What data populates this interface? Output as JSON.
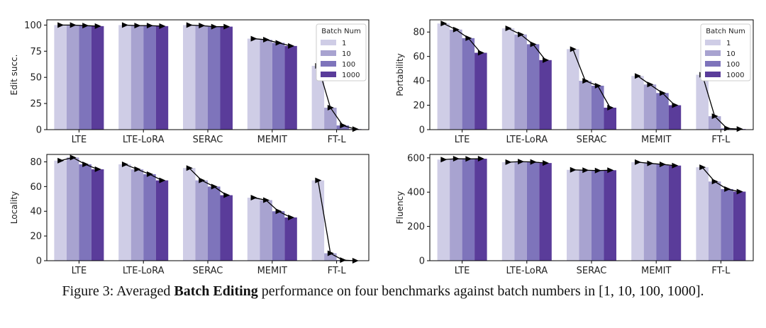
{
  "caption": {
    "prefix": "Figure 3: Averaged ",
    "bold": "Batch Editing",
    "suffix": " performance on four benchmarks against batch numbers in [1, 10, 100, 1000]."
  },
  "colors": {
    "series": [
      "#cfcde6",
      "#a8a3d0",
      "#7e74bb",
      "#5a3c9a"
    ],
    "line": "#000000",
    "axis": "#000000"
  },
  "chart_data": [
    {
      "type": "bar",
      "ylabel": "Edit succ.",
      "categories": [
        "LTE",
        "LTE-LoRA",
        "SERAC",
        "MEMIT",
        "FT-L"
      ],
      "ylim": [
        0,
        105
      ],
      "yticks": [
        0,
        25,
        50,
        75,
        100
      ],
      "legend": {
        "title": "Batch Num",
        "position": "top-right"
      },
      "series": [
        {
          "name": "1",
          "values": [
            100,
            100,
            100,
            87,
            61
          ]
        },
        {
          "name": "10",
          "values": [
            100,
            99.5,
            99.5,
            86,
            21
          ]
        },
        {
          "name": "100",
          "values": [
            99.5,
            99.5,
            98.5,
            83,
            4
          ]
        },
        {
          "name": "1000",
          "values": [
            99,
            99,
            98.5,
            80,
            0.5
          ]
        }
      ]
    },
    {
      "type": "bar",
      "ylabel": "Portability",
      "categories": [
        "LTE",
        "LTE-LoRA",
        "SERAC",
        "MEMIT",
        "FT-L"
      ],
      "ylim": [
        0,
        90
      ],
      "yticks": [
        0,
        20,
        40,
        60,
        80
      ],
      "legend": {
        "title": "Batch Num",
        "position": "top-right"
      },
      "series": [
        {
          "name": "1",
          "values": [
            87,
            83,
            66,
            44,
            45
          ]
        },
        {
          "name": "10",
          "values": [
            82,
            78,
            40,
            37,
            11
          ]
        },
        {
          "name": "100",
          "values": [
            75,
            70,
            36,
            30,
            1
          ]
        },
        {
          "name": "1000",
          "values": [
            63,
            57,
            18,
            20,
            0.5
          ]
        }
      ]
    },
    {
      "type": "bar",
      "ylabel": "Locality",
      "categories": [
        "LTE",
        "LTE-LoRA",
        "SERAC",
        "MEMIT",
        "FT-L"
      ],
      "ylim": [
        0,
        86
      ],
      "yticks": [
        0,
        20,
        40,
        60,
        80
      ],
      "series": [
        {
          "name": "1",
          "values": [
            81,
            78,
            75,
            51,
            65
          ]
        },
        {
          "name": "10",
          "values": [
            83.5,
            74,
            65,
            49,
            6
          ]
        },
        {
          "name": "100",
          "values": [
            78,
            70,
            60,
            40,
            0.5
          ]
        },
        {
          "name": "1000",
          "values": [
            74,
            65,
            53,
            35,
            0
          ]
        }
      ]
    },
    {
      "type": "bar",
      "ylabel": "Fluency",
      "categories": [
        "LTE",
        "LTE-LoRA",
        "SERAC",
        "MEMIT",
        "FT-L"
      ],
      "ylim": [
        0,
        620
      ],
      "yticks": [
        0,
        200,
        400,
        600
      ],
      "series": [
        {
          "name": "1",
          "values": [
            590,
            575,
            530,
            575,
            545
          ]
        },
        {
          "name": "10",
          "values": [
            595,
            578,
            528,
            568,
            462
          ]
        },
        {
          "name": "100",
          "values": [
            594,
            576,
            526,
            562,
            418
          ]
        },
        {
          "name": "1000",
          "values": [
            595,
            570,
            528,
            555,
            403
          ]
        }
      ]
    }
  ]
}
